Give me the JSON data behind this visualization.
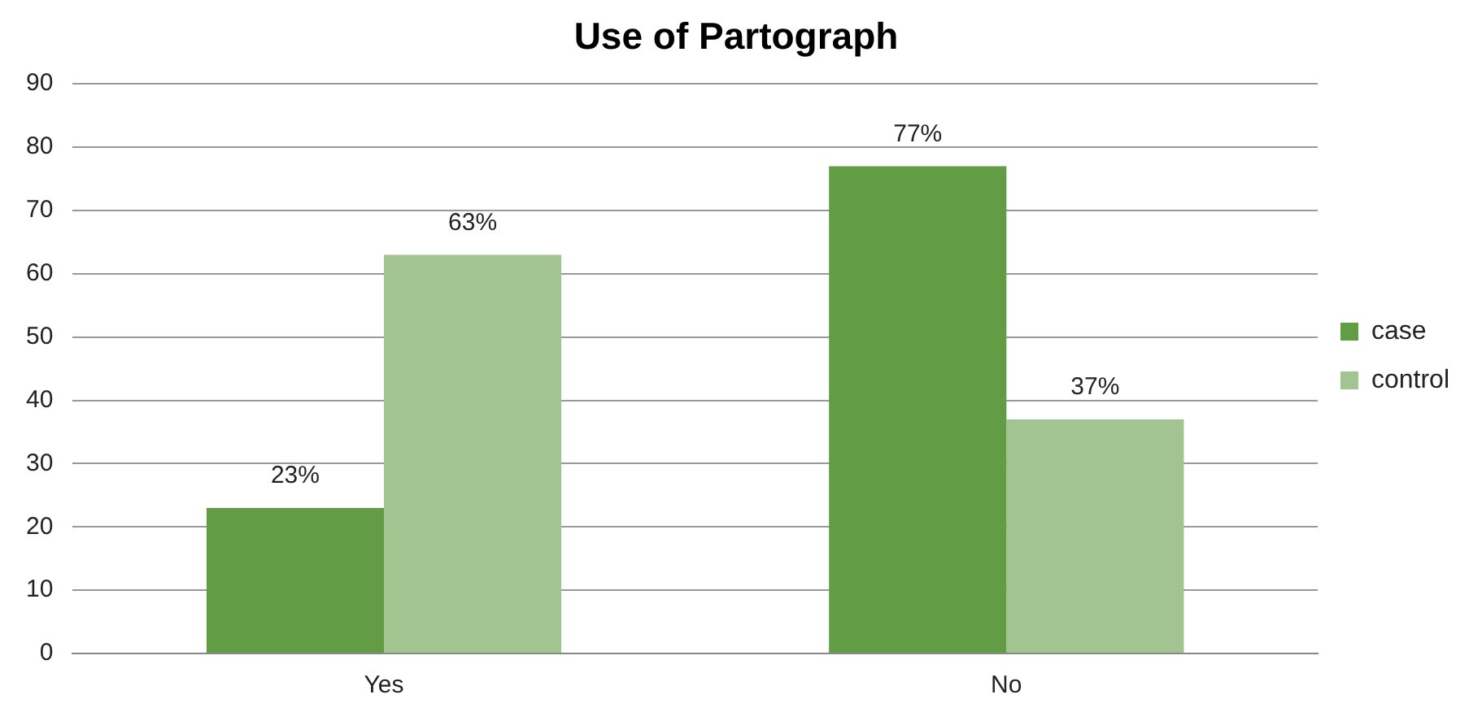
{
  "chart_data": {
    "type": "bar",
    "title": "Use of Partograph",
    "categories": [
      "Yes",
      "No"
    ],
    "series": [
      {
        "name": "case",
        "color": "#629c44",
        "values": [
          23,
          77
        ],
        "value_labels": [
          "23%",
          "77%"
        ]
      },
      {
        "name": "control",
        "color": "#a1c490",
        "values": [
          63,
          37
        ],
        "value_labels": [
          "63%",
          "37%"
        ]
      }
    ],
    "ylim": [
      0,
      90
    ],
    "yticks": [
      0,
      10,
      20,
      30,
      40,
      50,
      60,
      70,
      80,
      90
    ],
    "grid": "y",
    "legend": "right"
  }
}
